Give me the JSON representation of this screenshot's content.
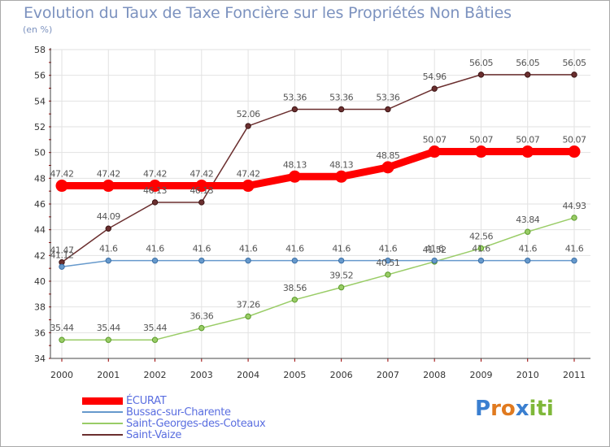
{
  "title": "Evolution du Taux de Taxe Foncière sur les Propriétés Non Bâties",
  "unit": "(en %)",
  "logo": {
    "text": "Proxiti"
  },
  "chart_data": {
    "type": "line",
    "categories": [
      "2000",
      "2001",
      "2002",
      "2003",
      "2004",
      "2005",
      "2006",
      "2007",
      "2008",
      "2009",
      "2010",
      "2011"
    ],
    "ylim": [
      34,
      58
    ],
    "yticks": [
      34,
      36,
      38,
      40,
      42,
      44,
      46,
      48,
      50,
      52,
      54,
      56,
      58
    ],
    "grid": true,
    "legend_position": "bottom-left",
    "series": [
      {
        "name": "ÉCURAT",
        "color": "#ff0000",
        "values": [
          47.42,
          47.42,
          47.42,
          47.42,
          47.42,
          48.13,
          48.13,
          48.85,
          50.07,
          50.07,
          50.07,
          50.07
        ],
        "labels": [
          "47.42",
          "47.42",
          "47.42",
          "47.42",
          "47.42",
          "48.13",
          "48.13",
          "48.85",
          "50.07",
          "50.07",
          "50.07",
          "50.07"
        ]
      },
      {
        "name": "Bussac-sur-Charente",
        "color": "#6699cc",
        "values": [
          41.12,
          41.6,
          41.6,
          41.6,
          41.6,
          41.6,
          41.6,
          41.6,
          41.6,
          41.6,
          41.6,
          41.6
        ],
        "labels": [
          "41.12",
          "41.6",
          "41.6",
          "41.6",
          "41.6",
          "41.6",
          "41.6",
          "41.6",
          "41.6",
          "41.6",
          "41.6",
          "41.6"
        ]
      },
      {
        "name": "Saint-Georges-des-Coteaux",
        "color": "#99cc66",
        "values": [
          35.44,
          35.44,
          35.44,
          36.36,
          37.26,
          38.56,
          39.52,
          40.51,
          41.52,
          42.56,
          43.84,
          44.93
        ],
        "labels": [
          "35.44",
          "35.44",
          "35.44",
          "36.36",
          "37.26",
          "38.56",
          "39.52",
          "40.51",
          "41.52",
          "42.56",
          "43.84",
          "44.93"
        ]
      },
      {
        "name": "Saint-Vaize",
        "color": "#6b2f2f",
        "values": [
          41.47,
          44.09,
          46.13,
          46.13,
          52.06,
          53.36,
          53.36,
          53.36,
          54.96,
          56.05,
          56.05,
          56.05
        ],
        "labels": [
          "41.47",
          "44.09",
          "46.13",
          "46.13",
          "52.06",
          "53.36",
          "53.36",
          "53.36",
          "54.96",
          "56.05",
          "56.05",
          "56.05"
        ]
      }
    ]
  }
}
